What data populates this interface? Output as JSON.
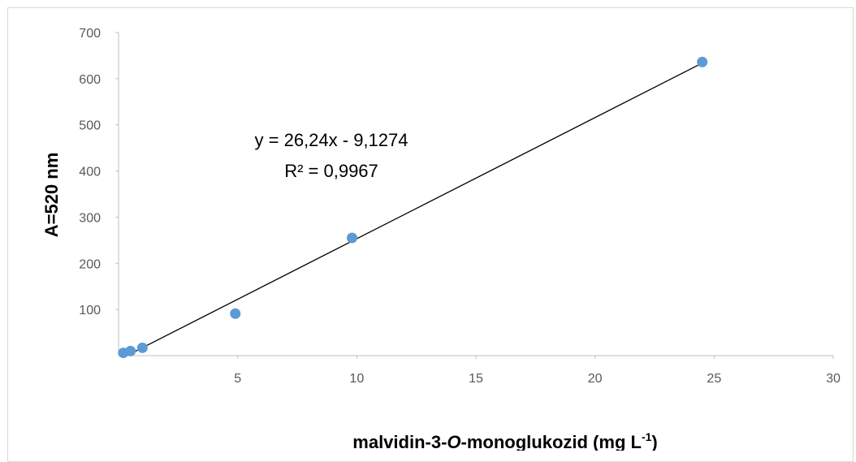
{
  "chart_data": {
    "type": "scatter",
    "title": "",
    "xlabel": {
      "main": "malvidin-3-",
      "italic": "O",
      "rest": "-monoglukozid (mg L",
      "sup": "-1",
      "close": ")"
    },
    "ylabel": "A=520 nm",
    "xlim": [
      0,
      30
    ],
    "ylim": [
      0,
      700
    ],
    "xticks": [
      5,
      10,
      15,
      20,
      25,
      30
    ],
    "yticks": [
      100,
      200,
      300,
      400,
      500,
      600,
      700
    ],
    "x_tick_labels": [
      "5",
      "10",
      "15",
      "20",
      "25",
      "30"
    ],
    "y_tick_labels": [
      "100",
      "200",
      "300",
      "400",
      "500",
      "600",
      "700"
    ],
    "points": [
      {
        "x": 0.2,
        "y": 6
      },
      {
        "x": 0.5,
        "y": 10
      },
      {
        "x": 1.0,
        "y": 17
      },
      {
        "x": 4.9,
        "y": 91
      },
      {
        "x": 9.8,
        "y": 255
      },
      {
        "x": 24.5,
        "y": 636
      }
    ],
    "trendline": {
      "slope": 26.24,
      "intercept": -9.1274,
      "x_range": [
        0.35,
        24.5
      ]
    },
    "equation": "y = 26,24x - 9,1274",
    "r_squared": "R² = 0,9967",
    "colors": {
      "marker": "#5b9bd5",
      "trendline": "#000000",
      "axis": "#bfbfbf"
    },
    "grid": false,
    "legend": "none"
  }
}
